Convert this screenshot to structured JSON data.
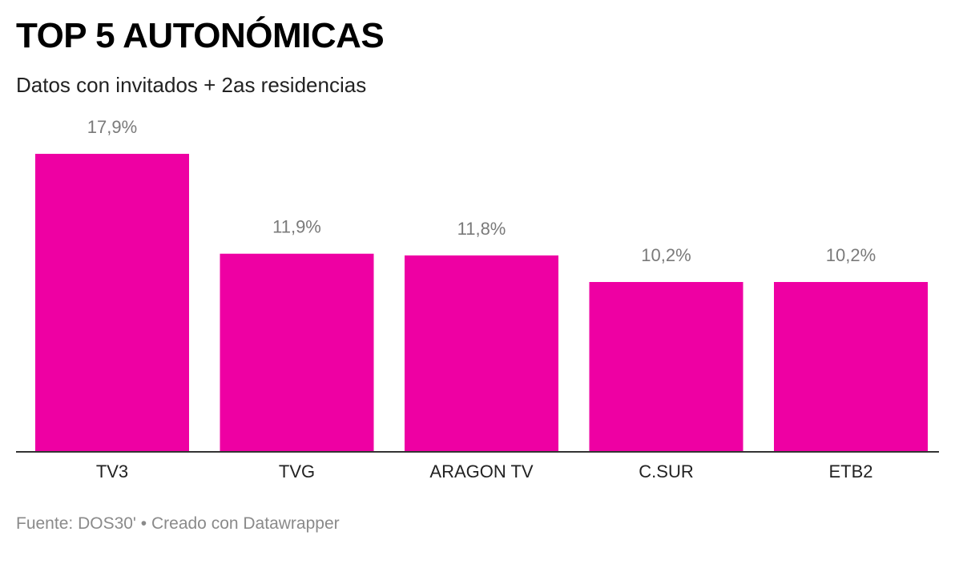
{
  "title": "TOP 5 AUTONÓMICAS",
  "subtitle": "Datos con invitados + 2as residencias",
  "chart_data": {
    "type": "bar",
    "categories": [
      "TV3",
      "TVG",
      "ARAGON TV",
      "C.SUR",
      "ETB2"
    ],
    "values": [
      17.9,
      11.9,
      11.8,
      10.2,
      10.2
    ],
    "value_labels": [
      "17,9%",
      "11,9%",
      "11,8%",
      "10,2%",
      "10,2%"
    ],
    "ylim": [
      0,
      17.9
    ],
    "bar_color": "#EE00A3",
    "grid": false,
    "legend": "none"
  },
  "footer": {
    "source_label": "Fuente:",
    "source": "DOS30'",
    "separator": "•",
    "credit": "Creado con Datawrapper"
  }
}
